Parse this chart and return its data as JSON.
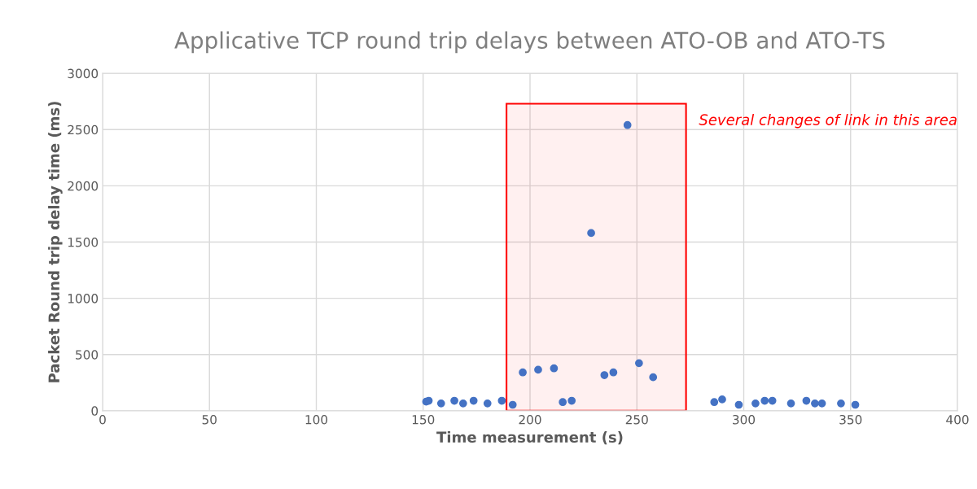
{
  "chart_data": {
    "type": "scatter",
    "title": "Applicative TCP round trip delays between ATO-OB and ATO-TS",
    "xlabel": "Time measurement (s)",
    "ylabel": "Packet Round trip delay time (ms)",
    "x": [
      151.4,
      152.6,
      158.4,
      164.6,
      168.7,
      173.6,
      180.1,
      186.8,
      191.9,
      196.6,
      203.8,
      211.2,
      215.3,
      219.5,
      228.6,
      234.8,
      239.0,
      245.6,
      251.0,
      257.6,
      286.2,
      289.9,
      297.7,
      305.5,
      309.8,
      313.4,
      322.1,
      329.3,
      333.3,
      336.6,
      345.5,
      352.2
    ],
    "series": [
      {
        "color": "#4472c4",
        "values": [
          81,
          89,
          65,
          89,
          65,
          89,
          65,
          89,
          53,
          341,
          365,
          377,
          77,
          89,
          1580,
          317,
          341,
          2540,
          423,
          298,
          77,
          101,
          53,
          65,
          89,
          89,
          65,
          89,
          65,
          65,
          65,
          53
        ]
      }
    ],
    "xlim": [
      0,
      400
    ],
    "xticks": [
      0,
      50,
      100,
      150,
      200,
      250,
      300,
      350,
      400
    ],
    "ylim": [
      0,
      3000
    ],
    "yticks": [
      0,
      500,
      1000,
      1500,
      2000,
      2500,
      3000
    ],
    "grid": true,
    "marker": "circle",
    "bands": [
      {
        "axis": "x",
        "from": 189,
        "to": 273,
        "label": "Several changes of link in this area",
        "color": "#ff0000"
      }
    ]
  }
}
